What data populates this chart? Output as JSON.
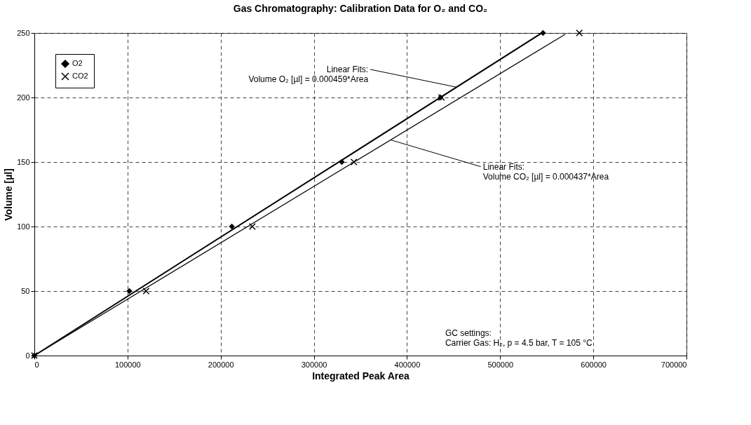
{
  "chart_data": {
    "type": "scatter",
    "title": "Gas Chromatography: Calibration Data for O₂ and CO₂",
    "xlabel": "Integrated Peak Area",
    "ylabel": "Volume [µl]",
    "xlim": [
      0,
      700000
    ],
    "xticks": [
      0,
      100000,
      200000,
      300000,
      400000,
      500000,
      600000,
      700000
    ],
    "ylim": [
      0,
      250
    ],
    "yticks": [
      0,
      50,
      100,
      150,
      200,
      250
    ],
    "grid": true,
    "legend": "top left",
    "series": [
      {
        "name": "O2",
        "type": "scatter",
        "marker": "diamond",
        "color": "#000000",
        "x": [
          0,
          102000,
          212000,
          330000,
          436000,
          546000
        ],
        "values": [
          0,
          50,
          100,
          150,
          200,
          250
        ]
      },
      {
        "name": "CO2",
        "type": "scatter",
        "marker": "cross",
        "color": "#000000",
        "x": [
          0,
          120000,
          234000,
          343000,
          437000,
          585000
        ],
        "values": [
          0,
          50,
          100,
          150,
          200,
          250
        ]
      },
      {
        "type": "line",
        "color": "#000000",
        "line_style": "solid",
        "x": [
          0,
          544000
        ],
        "values": [
          0,
          249.7
        ]
      },
      {
        "type": "line",
        "color": "#000000",
        "line_style": "solid",
        "x": [
          0,
          570000
        ],
        "values": [
          0,
          249.1
        ]
      }
    ],
    "annotations": [
      {
        "text": "Linear Fits:\nVolume O₂ [µl] = 0.000459*Area",
        "x": 453000,
        "y": 208
      },
      {
        "text": "Linear Fits:\nVolume CO₂ [µl] = 0.000437*Area",
        "x": 383000,
        "y": 167
      },
      "GC settings:\nCarrier Gas: H₂, p = 4.5 bar, T = 105 °C"
    ]
  }
}
